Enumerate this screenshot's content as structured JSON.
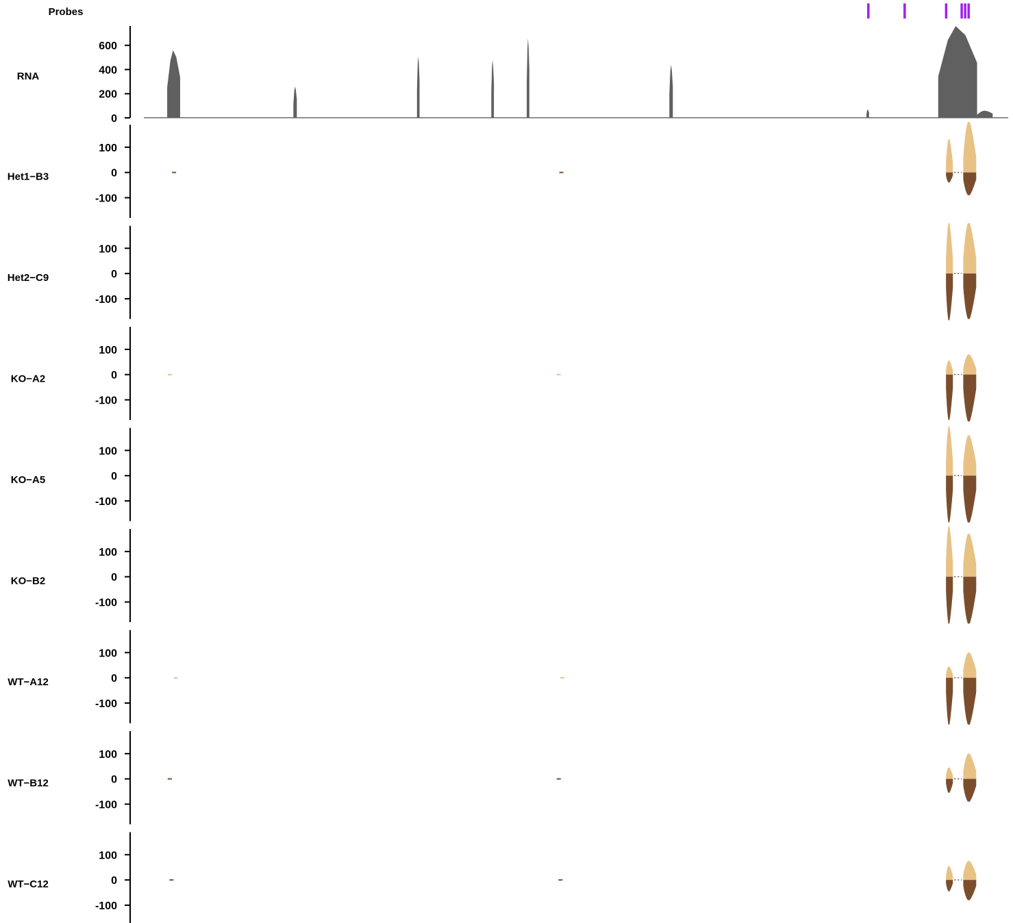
{
  "chart_data": {
    "type": "area",
    "title": "",
    "colors": {
      "probe": "#a020f0",
      "rna": "#606060",
      "axis": "#000000",
      "positive": "#e8c285",
      "negative": "#7a4e2d"
    },
    "x_domain": [
      0,
      1000
    ],
    "probes": {
      "label": "Probes",
      "positions": [
        838,
        880,
        928,
        946,
        950,
        954
      ]
    },
    "rna": {
      "label": "RNA",
      "ylim": [
        0,
        760
      ],
      "ticks": [
        0,
        200,
        400,
        600
      ],
      "baseline": 5,
      "peaks": [
        {
          "start": 27,
          "end": 42,
          "height": 560
        },
        {
          "start": 173,
          "end": 177,
          "height": 260
        },
        {
          "start": 316,
          "end": 319,
          "height": 510
        },
        {
          "start": 402,
          "end": 405,
          "height": 480
        },
        {
          "start": 443,
          "end": 446,
          "height": 660
        },
        {
          "start": 608,
          "end": 612,
          "height": 440
        },
        {
          "start": 836,
          "end": 839,
          "height": 70
        },
        {
          "start": 919,
          "end": 964,
          "height": 760
        },
        {
          "start": 964,
          "end": 982,
          "height": 60
        }
      ]
    },
    "tracks": [
      {
        "label": "Het1−B3",
        "ylim": [
          -180,
          200
        ],
        "ticks": [
          100,
          0,
          -100
        ],
        "exon1": {
          "pos": 132,
          "neg": -40
        },
        "exon2": {
          "pos": 200,
          "neg": -90
        },
        "noise": [
          {
            "x": 35,
            "v": -1
          },
          {
            "x": 483,
            "v": -1
          }
        ]
      },
      {
        "label": "Het2−C9",
        "ylim": [
          -180,
          200
        ],
        "ticks": [
          100,
          0,
          -100
        ],
        "exon1": {
          "pos": 200,
          "neg": -200
        },
        "exon2": {
          "pos": 200,
          "neg": -180
        },
        "noise": []
      },
      {
        "label": "KO−A2",
        "ylim": [
          -180,
          200
        ],
        "ticks": [
          100,
          0,
          -100
        ],
        "exon1": {
          "pos": 55,
          "neg": -180
        },
        "exon2": {
          "pos": 80,
          "neg": -190
        },
        "noise": [
          {
            "x": 30,
            "v": 1
          },
          {
            "x": 480,
            "v": 1
          }
        ]
      },
      {
        "label": "KO−A5",
        "ylim": [
          -180,
          200
        ],
        "ticks": [
          100,
          0,
          -100
        ],
        "exon1": {
          "pos": 195,
          "neg": -200
        },
        "exon2": {
          "pos": 160,
          "neg": -190
        },
        "noise": []
      },
      {
        "label": "KO−B2",
        "ylim": [
          -180,
          200
        ],
        "ticks": [
          100,
          0,
          -100
        ],
        "exon1": {
          "pos": 200,
          "neg": -200
        },
        "exon2": {
          "pos": 170,
          "neg": -190
        },
        "noise": []
      },
      {
        "label": "WT−A12",
        "ylim": [
          -180,
          200
        ],
        "ticks": [
          100,
          0,
          -100
        ],
        "exon1": {
          "pos": 45,
          "neg": -200
        },
        "exon2": {
          "pos": 100,
          "neg": -190
        },
        "noise": [
          {
            "x": 37,
            "v": 1
          },
          {
            "x": 484,
            "v": 1
          }
        ]
      },
      {
        "label": "WT−B12",
        "ylim": [
          -180,
          200
        ],
        "ticks": [
          100,
          0,
          -100
        ],
        "exon1": {
          "pos": 45,
          "neg": -55
        },
        "exon2": {
          "pos": 100,
          "neg": -90
        },
        "noise": [
          {
            "x": 30,
            "v": -2
          },
          {
            "x": 480,
            "v": -2
          }
        ]
      },
      {
        "label": "WT−C12",
        "ylim": [
          -180,
          200
        ],
        "ticks": [
          100,
          0,
          -100
        ],
        "exon1": {
          "pos": 55,
          "neg": -45
        },
        "exon2": {
          "pos": 75,
          "neg": -80
        },
        "noise": [
          {
            "x": 32,
            "v": -1
          },
          {
            "x": 482,
            "v": -1
          }
        ]
      }
    ],
    "exon_ranges": {
      "exon1": [
        928,
        936
      ],
      "exon2": [
        948,
        963
      ]
    }
  }
}
